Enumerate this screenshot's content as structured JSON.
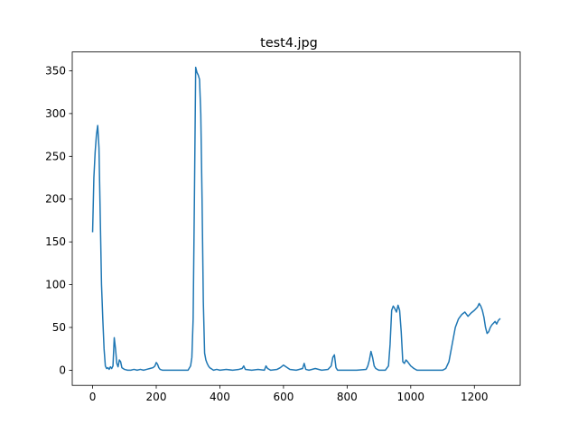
{
  "chart_data": {
    "type": "line",
    "title": "test4.jpg",
    "xlabel": "",
    "ylabel": "",
    "xlim": [
      -64,
      1344
    ],
    "ylim": [
      -17.7,
      372
    ],
    "xticks": [
      0,
      200,
      400,
      600,
      800,
      1000,
      1200
    ],
    "yticks": [
      0,
      50,
      100,
      150,
      200,
      250,
      300,
      350
    ],
    "grid": false,
    "colors": {
      "line": "#1f77b4",
      "axes": "#000000",
      "background": "#ffffff"
    },
    "series": [
      {
        "x": [
          0,
          4,
          8,
          12,
          16,
          20,
          24,
          28,
          32,
          36,
          40,
          44,
          48,
          52,
          56,
          60,
          64,
          68,
          72,
          76,
          80,
          84,
          88,
          92,
          96,
          100,
          110,
          120,
          130,
          140,
          150,
          160,
          170,
          180,
          190,
          196,
          200,
          204,
          208,
          212,
          220,
          240,
          260,
          280,
          300,
          308,
          312,
          316,
          320,
          324,
          328,
          332,
          336,
          340,
          344,
          348,
          352,
          356,
          360,
          364,
          368,
          372,
          380,
          390,
          400,
          420,
          440,
          460,
          470,
          475,
          480,
          500,
          520,
          540,
          545,
          550,
          560,
          580,
          590,
          600,
          620,
          640,
          660,
          665,
          670,
          680,
          700,
          720,
          740,
          750,
          755,
          760,
          765,
          770,
          800,
          830,
          860,
          865,
          870,
          875,
          880,
          885,
          890,
          900,
          920,
          930,
          935,
          940,
          945,
          950,
          955,
          960,
          965,
          970,
          975,
          980,
          985,
          990,
          1000,
          1010,
          1020,
          1030,
          1040,
          1060,
          1080,
          1100,
          1110,
          1120,
          1130,
          1140,
          1150,
          1160,
          1170,
          1180,
          1190,
          1200,
          1210,
          1215,
          1220,
          1225,
          1230,
          1235,
          1240,
          1245,
          1250,
          1255,
          1260,
          1265,
          1270,
          1275,
          1280
        ],
        "y": [
          162,
          225,
          255,
          275,
          286,
          260,
          180,
          100,
          60,
          25,
          5,
          2,
          3,
          1,
          4,
          2,
          5,
          38,
          25,
          8,
          4,
          12,
          10,
          3,
          2,
          1,
          0,
          0,
          1,
          0,
          1,
          0,
          1,
          2,
          3,
          5,
          9,
          7,
          3,
          1,
          0,
          0,
          0,
          0,
          0,
          5,
          15,
          60,
          200,
          354,
          348,
          345,
          340,
          300,
          200,
          80,
          20,
          12,
          8,
          5,
          3,
          2,
          0,
          1,
          0,
          1,
          0,
          1,
          2,
          5,
          1,
          0,
          1,
          0,
          5,
          2,
          0,
          1,
          3,
          6,
          1,
          0,
          2,
          8,
          1,
          0,
          2,
          0,
          1,
          5,
          15,
          18,
          3,
          0,
          0,
          0,
          1,
          5,
          12,
          22,
          15,
          5,
          2,
          0,
          0,
          5,
          30,
          70,
          75,
          72,
          68,
          76,
          70,
          45,
          10,
          8,
          12,
          10,
          5,
          2,
          0,
          0,
          0,
          0,
          0,
          0,
          2,
          10,
          30,
          50,
          60,
          65,
          68,
          63,
          67,
          70,
          74,
          78,
          75,
          70,
          62,
          50,
          43,
          45,
          50,
          53,
          55,
          57,
          54,
          58,
          60
        ]
      }
    ]
  }
}
